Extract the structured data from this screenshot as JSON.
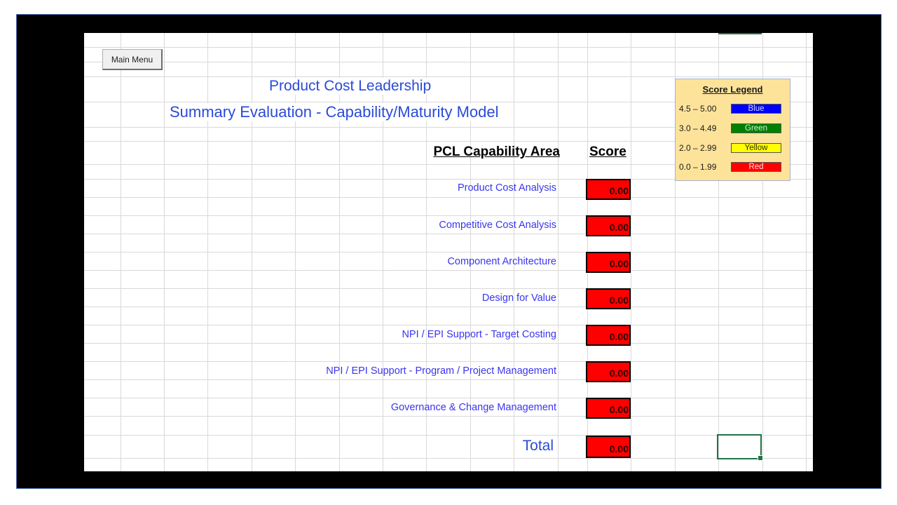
{
  "toolbar": {
    "main_menu_label": "Main Menu"
  },
  "header": {
    "title": "Product Cost Leadership",
    "subtitle": "Summary Evaluation - Capability/Maturity Model"
  },
  "table": {
    "area_header": "PCL Capability Area",
    "score_header": "Score",
    "rows": [
      {
        "label": "Product Cost Analysis",
        "score": "0.00"
      },
      {
        "label": "Competitive Cost  Analysis",
        "score": "0.00"
      },
      {
        "label": "Component Architecture",
        "score": "0.00"
      },
      {
        "label": "Design for Value",
        "score": "0.00"
      },
      {
        "label": "NPI / EPI Support  - Target Costing",
        "score": "0.00"
      },
      {
        "label": "NPI / EPI Support - Program / Project Management",
        "score": "0.00"
      },
      {
        "label": "Governance & Change Management",
        "score": "0.00"
      }
    ],
    "total_label": "Total",
    "total_score": "0.00"
  },
  "legend": {
    "title": "Score Legend",
    "items": [
      {
        "range": "4.5 – 5.00",
        "name": "Blue",
        "color": "#0000ff",
        "text_color": "#d0d8ff"
      },
      {
        "range": "3.0 – 4.49",
        "name": "Green",
        "color": "#008000",
        "text_color": "#d8f0d8"
      },
      {
        "range": "2.0 – 2.99",
        "name": "Yellow",
        "color": "#ffff00",
        "text_color": "#333300"
      },
      {
        "range": "0.0 – 1.99",
        "name": "Red",
        "color": "#ff0000",
        "text_color": "#ffe0e0"
      }
    ]
  },
  "colors": {
    "score_fill": "#ff0000",
    "title_blue": "#2a4bd8",
    "label_blue": "#3a35f0",
    "selection_green": "#217346"
  },
  "grid": {
    "cols": [
      52,
      114,
      176,
      239,
      301,
      364,
      426,
      488,
      551,
      613,
      676,
      718,
      780,
      843,
      905,
      968,
      1030
    ],
    "rows": [
      20,
      41,
      62,
      98,
      134,
      154,
      187,
      208,
      234,
      260,
      286,
      312,
      338,
      364,
      390,
      416,
      442,
      468,
      494,
      520,
      546,
      573,
      606,
      625
    ]
  }
}
